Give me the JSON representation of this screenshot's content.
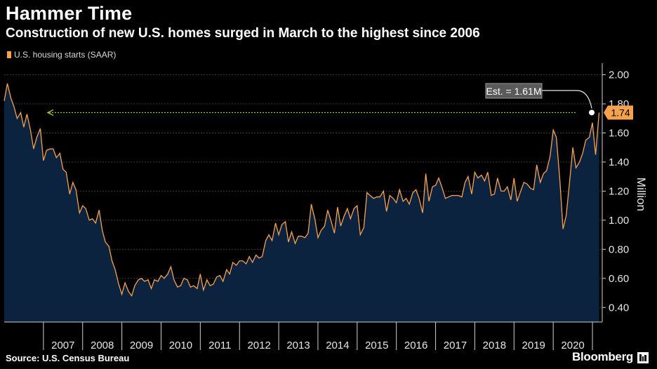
{
  "header": {
    "title": "Hammer Time",
    "subtitle": "Construction of new U.S. homes surged in March to the highest since 2006"
  },
  "footer": {
    "source": "Source: U.S. Census Bureau",
    "brand": "Bloomberg",
    "brand_icon": "bloomberg-mark-icon"
  },
  "colors": {
    "background": "#000000",
    "area_fill": "#0c2340",
    "line": "#f6a24c",
    "arrow": "#9ccc2c",
    "annotation_box": "#5a5a5a",
    "last_value_box": "#f6a24c"
  },
  "chart_data": {
    "type": "area",
    "legend": [
      {
        "name": "U.S. housing starts (SAAR)",
        "color": "#f6a24c"
      }
    ],
    "legend_position": "top-left",
    "xlabel": "",
    "ylabel": "Million",
    "ylim": [
      0.3,
      2.08
    ],
    "xlim": [
      2006.0,
      2021.25
    ],
    "yticks": [
      0.4,
      0.6,
      0.8,
      1.0,
      1.2,
      1.4,
      1.6,
      1.8,
      2.0
    ],
    "ytick_labels": [
      "0.40",
      "0.60",
      "0.80",
      "1.00",
      "1.20",
      "1.40",
      "1.60",
      "1.80",
      "2.00"
    ],
    "year_labels": [
      "2007",
      "2008",
      "2009",
      "2010",
      "2011",
      "2012",
      "2013",
      "2014",
      "2015",
      "2016",
      "2017",
      "2018",
      "2019",
      "2020"
    ],
    "grid": true,
    "y_axis_side": "right",
    "series": [
      {
        "name": "U.S. housing starts (SAAR)",
        "x": [
          2006.0,
          2006.08,
          2006.17,
          2006.25,
          2006.33,
          2006.42,
          2006.5,
          2006.58,
          2006.67,
          2006.75,
          2006.83,
          2006.92,
          2007.0,
          2007.08,
          2007.17,
          2007.25,
          2007.33,
          2007.42,
          2007.5,
          2007.58,
          2007.67,
          2007.75,
          2007.83,
          2007.92,
          2008.0,
          2008.08,
          2008.17,
          2008.25,
          2008.33,
          2008.42,
          2008.5,
          2008.58,
          2008.67,
          2008.75,
          2008.83,
          2008.92,
          2009.0,
          2009.08,
          2009.17,
          2009.25,
          2009.33,
          2009.42,
          2009.5,
          2009.58,
          2009.67,
          2009.75,
          2009.83,
          2009.92,
          2010.0,
          2010.08,
          2010.17,
          2010.25,
          2010.33,
          2010.42,
          2010.5,
          2010.58,
          2010.67,
          2010.75,
          2010.83,
          2010.92,
          2011.0,
          2011.08,
          2011.17,
          2011.25,
          2011.33,
          2011.42,
          2011.5,
          2011.58,
          2011.67,
          2011.75,
          2011.83,
          2011.92,
          2012.0,
          2012.08,
          2012.17,
          2012.25,
          2012.33,
          2012.42,
          2012.5,
          2012.58,
          2012.67,
          2012.75,
          2012.83,
          2012.92,
          2013.0,
          2013.08,
          2013.17,
          2013.25,
          2013.33,
          2013.42,
          2013.5,
          2013.58,
          2013.67,
          2013.75,
          2013.83,
          2013.92,
          2014.0,
          2014.08,
          2014.17,
          2014.25,
          2014.33,
          2014.42,
          2014.5,
          2014.58,
          2014.67,
          2014.75,
          2014.83,
          2014.92,
          2015.0,
          2015.08,
          2015.17,
          2015.25,
          2015.33,
          2015.42,
          2015.5,
          2015.58,
          2015.67,
          2015.75,
          2015.83,
          2015.92,
          2016.0,
          2016.08,
          2016.17,
          2016.25,
          2016.33,
          2016.42,
          2016.5,
          2016.58,
          2016.67,
          2016.75,
          2016.83,
          2016.92,
          2017.0,
          2017.08,
          2017.17,
          2017.25,
          2017.33,
          2017.42,
          2017.5,
          2017.58,
          2017.67,
          2017.75,
          2017.83,
          2017.92,
          2018.0,
          2018.08,
          2018.17,
          2018.25,
          2018.33,
          2018.42,
          2018.5,
          2018.58,
          2018.67,
          2018.75,
          2018.83,
          2018.92,
          2019.0,
          2019.08,
          2019.17,
          2019.25,
          2019.33,
          2019.42,
          2019.5,
          2019.58,
          2019.67,
          2019.75,
          2019.83,
          2019.92,
          2020.0,
          2020.08,
          2020.17,
          2020.25,
          2020.33,
          2020.42,
          2020.5,
          2020.58,
          2020.67,
          2020.75,
          2020.83,
          2020.92,
          2021.0,
          2021.08,
          2021.17
        ],
        "values": [
          1.82,
          1.94,
          1.84,
          1.78,
          1.7,
          1.74,
          1.64,
          1.73,
          1.62,
          1.49,
          1.57,
          1.63,
          1.41,
          1.48,
          1.49,
          1.49,
          1.43,
          1.46,
          1.35,
          1.33,
          1.18,
          1.26,
          1.21,
          1.05,
          1.1,
          1.08,
          1.0,
          1.01,
          0.98,
          1.07,
          0.93,
          0.85,
          0.82,
          0.72,
          0.66,
          0.56,
          0.49,
          0.57,
          0.51,
          0.48,
          0.55,
          0.59,
          0.6,
          0.58,
          0.59,
          0.53,
          0.59,
          0.58,
          0.62,
          0.6,
          0.63,
          0.68,
          0.59,
          0.54,
          0.55,
          0.6,
          0.59,
          0.54,
          0.55,
          0.53,
          0.63,
          0.52,
          0.59,
          0.55,
          0.56,
          0.61,
          0.62,
          0.58,
          0.66,
          0.63,
          0.71,
          0.69,
          0.72,
          0.72,
          0.7,
          0.75,
          0.71,
          0.76,
          0.74,
          0.75,
          0.86,
          0.9,
          0.86,
          0.98,
          0.9,
          0.97,
          0.99,
          0.85,
          0.92,
          0.84,
          0.89,
          0.89,
          0.88,
          0.91,
          1.11,
          1.01,
          0.88,
          0.93,
          0.96,
          1.07,
          1.0,
          0.91,
          1.09,
          0.96,
          1.03,
          1.08,
          1.01,
          1.08,
          1.1,
          0.9,
          0.95,
          1.19,
          1.17,
          1.15,
          1.16,
          1.16,
          1.2,
          1.06,
          1.17,
          1.15,
          1.12,
          1.21,
          1.13,
          1.15,
          1.11,
          1.19,
          1.21,
          1.15,
          1.05,
          1.32,
          1.13,
          1.23,
          1.24,
          1.29,
          1.22,
          1.15,
          1.16,
          1.17,
          1.17,
          1.17,
          1.16,
          1.26,
          1.3,
          1.18,
          1.33,
          1.29,
          1.31,
          1.27,
          1.33,
          1.17,
          1.18,
          1.29,
          1.2,
          1.2,
          1.23,
          1.14,
          1.29,
          1.13,
          1.2,
          1.26,
          1.25,
          1.22,
          1.21,
          1.38,
          1.26,
          1.32,
          1.34,
          1.44,
          1.62,
          1.57,
          1.27,
          0.94,
          1.03,
          1.27,
          1.5,
          1.36,
          1.4,
          1.46,
          1.55,
          1.57,
          1.67,
          1.45,
          1.74
        ]
      }
    ],
    "reference_line": {
      "value": 1.74,
      "style": "dashed arrow"
    },
    "annotations": [
      {
        "text": "Est. = 1.61M"
      },
      {
        "text": "1.74"
      }
    ]
  }
}
